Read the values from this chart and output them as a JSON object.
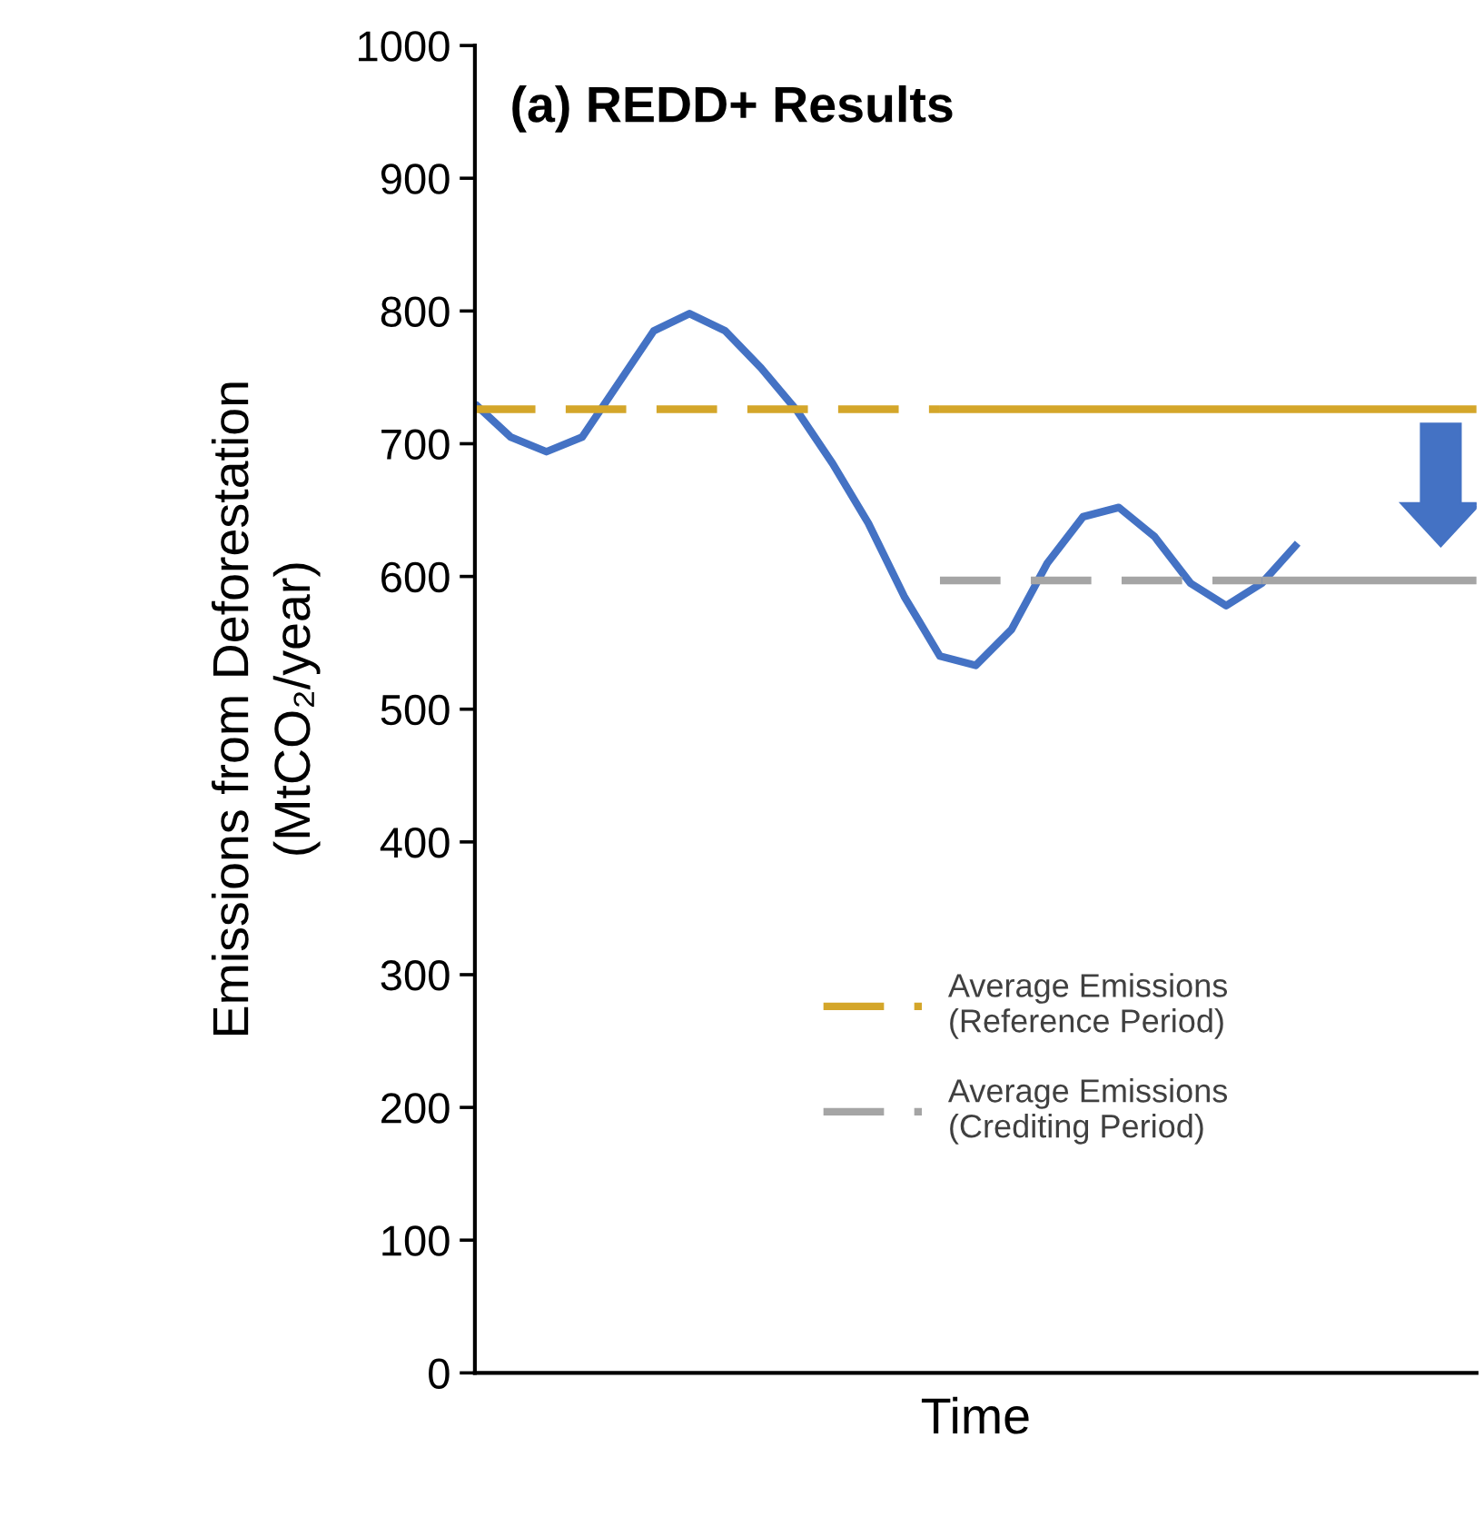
{
  "chart_data": {
    "type": "line",
    "title": "(a) REDD+ Results",
    "xlabel": "Time",
    "ylabel": "Emissions from Deforestation\n(MtCO₂/year)",
    "categories": [
      null,
      null,
      null,
      null,
      null,
      null,
      null,
      null,
      null,
      null,
      null,
      null,
      null,
      null,
      null,
      null,
      null,
      null,
      null,
      null,
      null,
      null,
      null,
      null,
      null,
      null,
      null,
      null,
      null
    ],
    "series": [
      {
        "color": "#4472c4",
        "line_style": "solid",
        "values": [
          730,
          705,
          694,
          705,
          745,
          785,
          798,
          785,
          757,
          725,
          685,
          640,
          585,
          540,
          533,
          560,
          610,
          645,
          652,
          630,
          595,
          578,
          595,
          625,
          null,
          null,
          null,
          null,
          null
        ]
      },
      {
        "name": "Average Emissions\n(Reference Period)",
        "color": "#d4a62a",
        "line_style": "dashed",
        "values": [
          726,
          726,
          726,
          726,
          726,
          726,
          726,
          726,
          726,
          726,
          726,
          726,
          726,
          726,
          null,
          null,
          null,
          null,
          null,
          null,
          null,
          null,
          null,
          null,
          null,
          null,
          null,
          null,
          null
        ]
      },
      {
        "color": "#d4a62a",
        "line_style": "solid",
        "values": [
          null,
          null,
          null,
          null,
          null,
          null,
          null,
          null,
          null,
          null,
          null,
          null,
          null,
          726,
          726,
          726,
          726,
          726,
          726,
          726,
          726,
          726,
          726,
          726,
          726,
          726,
          726,
          726,
          726
        ]
      },
      {
        "name": "Average Emissions\n(Crediting Period)",
        "color": "#a5a5a5",
        "line_style": "dashed",
        "values": [
          null,
          null,
          null,
          null,
          null,
          null,
          null,
          null,
          null,
          null,
          null,
          null,
          null,
          597,
          597,
          597,
          597,
          597,
          597,
          597,
          597,
          597,
          597,
          null,
          null,
          null,
          null,
          null,
          null
        ]
      },
      {
        "color": "#a5a5a5",
        "line_style": "solid",
        "values": [
          null,
          null,
          null,
          null,
          null,
          null,
          null,
          null,
          null,
          null,
          null,
          null,
          null,
          null,
          null,
          null,
          null,
          null,
          null,
          null,
          null,
          null,
          597,
          597,
          597,
          597,
          597,
          597,
          597
        ]
      }
    ],
    "ylim": [
      0,
      1000
    ],
    "yticks": [
      0,
      100,
      200,
      300,
      400,
      500,
      600,
      700,
      800,
      900,
      1000
    ],
    "grid": false,
    "legend": "bottom",
    "marker": "none"
  }
}
